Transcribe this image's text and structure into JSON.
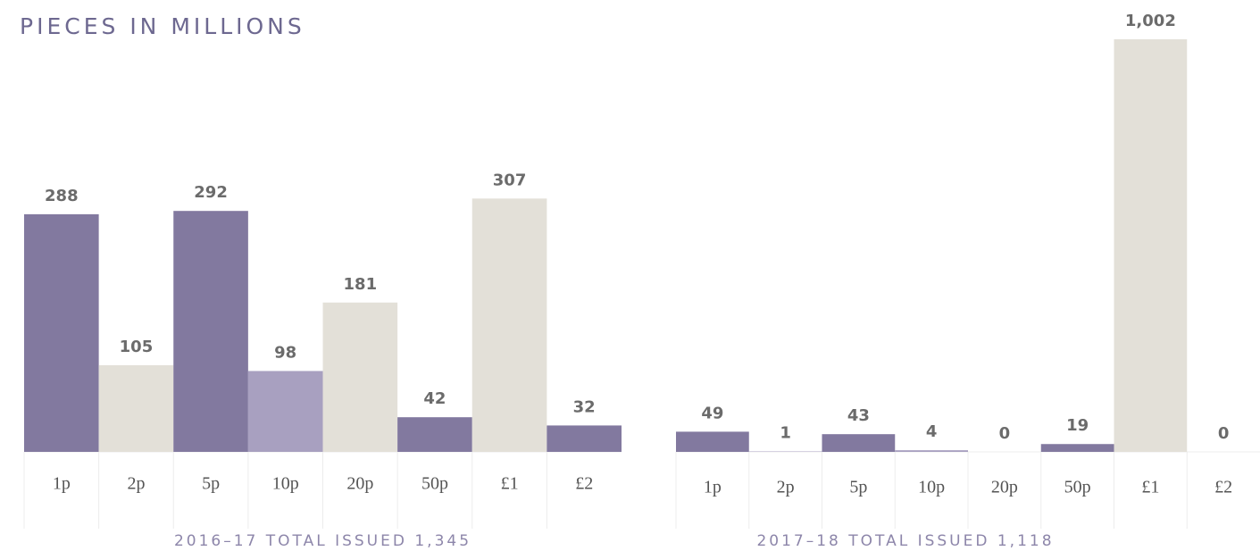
{
  "title": "PIECES IN MILLIONS",
  "chart_data": [
    {
      "type": "bar",
      "caption": "2016–17 TOTAL ISSUED 1,345",
      "categories": [
        "1p",
        "2p",
        "5p",
        "10p",
        "20p",
        "50p",
        "£1",
        "£2"
      ],
      "values": [
        288,
        105,
        292,
        98,
        181,
        42,
        307,
        32
      ],
      "colors": [
        "#82799f",
        "#e3e0d8",
        "#82799f",
        "#a8a0c0",
        "#e3e0d8",
        "#82799f",
        "#e3e0d8",
        "#82799f"
      ],
      "ylim": [
        0,
        500
      ]
    },
    {
      "type": "bar",
      "caption": "2017–18 TOTAL ISSUED 1,118",
      "categories": [
        "1p",
        "2p",
        "5p",
        "10p",
        "20p",
        "50p",
        "£1",
        "£2"
      ],
      "values": [
        49,
        1,
        43,
        4,
        0,
        19,
        1002,
        0
      ],
      "value_labels": [
        "49",
        "1",
        "43",
        "4",
        "0",
        "19",
        "1,002",
        "0"
      ],
      "colors": [
        "#82799f",
        "#a8a0c0",
        "#82799f",
        "#a8a0c0",
        "#e3e0d8",
        "#82799f",
        "#e3e0d8",
        "#82799f"
      ],
      "ylim": [
        0,
        1002
      ]
    }
  ]
}
